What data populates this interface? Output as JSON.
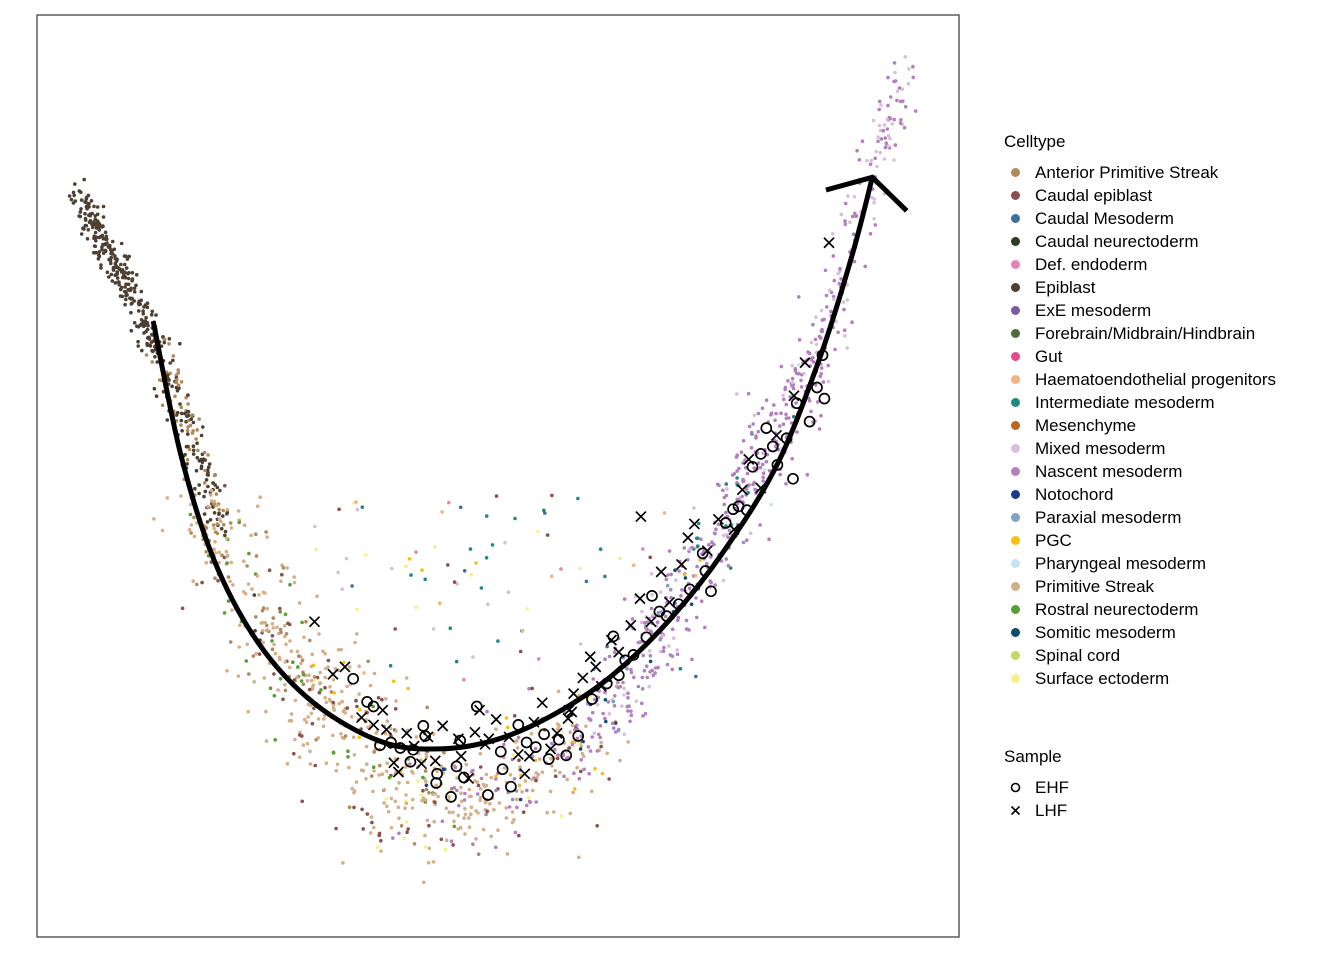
{
  "chart_data": {
    "type": "scatter",
    "title": "",
    "xlabel": "",
    "ylabel": "",
    "xlim": [
      0,
      100
    ],
    "ylim": [
      0,
      100
    ],
    "grid": false,
    "legend_placement": "right",
    "celltype_legend": {
      "title": "Celltype",
      "items": [
        {
          "label": "Anterior Primitive Streak",
          "color": "#b08a5a"
        },
        {
          "label": "Caudal epiblast",
          "color": "#8b4f4f"
        },
        {
          "label": "Caudal Mesoderm",
          "color": "#3a6fa0"
        },
        {
          "label": "Caudal neurectoderm",
          "color": "#2a3d1e"
        },
        {
          "label": "Def. endoderm",
          "color": "#e683b4"
        },
        {
          "label": "Epiblast",
          "color": "#4e3f32"
        },
        {
          "label": "ExE mesoderm",
          "color": "#7a5ca8"
        },
        {
          "label": "Forebrain/Midbrain/Hindbrain",
          "color": "#4f6b39"
        },
        {
          "label": "Gut",
          "color": "#e8488f"
        },
        {
          "label": "Haematoendothelial progenitors",
          "color": "#f4b183"
        },
        {
          "label": "Intermediate mesoderm",
          "color": "#1f8a84"
        },
        {
          "label": "Mesenchyme",
          "color": "#c0641a"
        },
        {
          "label": "Mixed mesoderm",
          "color": "#d9bfdc"
        },
        {
          "label": "Nascent mesoderm",
          "color": "#b27fbf"
        },
        {
          "label": "Notochord",
          "color": "#1b3a8c"
        },
        {
          "label": "Paraxial mesoderm",
          "color": "#7ba3c2"
        },
        {
          "label": "PGC",
          "color": "#f6c012"
        },
        {
          "label": "Pharyngeal mesoderm",
          "color": "#c7e2f5"
        },
        {
          "label": "Primitive Streak",
          "color": "#d4b089"
        },
        {
          "label": "Rostral neurectoderm",
          "color": "#56a033"
        },
        {
          "label": "Somitic mesoderm",
          "color": "#0f4d6e"
        },
        {
          "label": "Spinal cord",
          "color": "#c3d76a"
        },
        {
          "label": "Surface ectoderm",
          "color": "#f5f08a"
        }
      ]
    },
    "sample_legend": {
      "title": "Sample",
      "items": [
        {
          "label": "EHF",
          "shape": "open-circle"
        },
        {
          "label": "LHF",
          "shape": "cross"
        }
      ]
    },
    "trajectory": {
      "color": "#000000",
      "arrow_head": "end",
      "points": [
        [
          12.6,
          66.8
        ],
        [
          15.6,
          52.3
        ],
        [
          19.2,
          40.9
        ],
        [
          24.0,
          31.9
        ],
        [
          30.0,
          25.4
        ],
        [
          37.3,
          21.2
        ],
        [
          43.6,
          20.4
        ],
        [
          49.8,
          21.4
        ],
        [
          56.0,
          24.1
        ],
        [
          62.3,
          28.3
        ],
        [
          68.7,
          34.5
        ],
        [
          74.6,
          42.0
        ],
        [
          80.3,
          51.3
        ],
        [
          84.9,
          62.8
        ],
        [
          88.4,
          73.9
        ],
        [
          90.6,
          82.4
        ]
      ]
    },
    "ehf_cells": [
      [
        34.3,
        28.0
      ],
      [
        36.5,
        25.0
      ],
      [
        37.2,
        20.8
      ],
      [
        38.4,
        21.1
      ],
      [
        39.4,
        20.5
      ],
      [
        40.5,
        19.0
      ],
      [
        40.8,
        20.3
      ],
      [
        41.9,
        22.9
      ],
      [
        42.1,
        21.8
      ],
      [
        43.4,
        17.7
      ],
      [
        43.3,
        16.7
      ],
      [
        45.5,
        18.5
      ],
      [
        46.3,
        17.3
      ],
      [
        47.7,
        25.0
      ],
      [
        48.9,
        15.4
      ],
      [
        50.3,
        20.1
      ],
      [
        50.5,
        18.2
      ],
      [
        51.4,
        16.3
      ],
      [
        52.2,
        23.0
      ],
      [
        53.1,
        21.1
      ],
      [
        54.1,
        20.6
      ],
      [
        55.5,
        19.3
      ],
      [
        56.6,
        21.4
      ],
      [
        57.4,
        19.7
      ],
      [
        58.7,
        21.8
      ],
      [
        60.2,
        25.8
      ],
      [
        61.8,
        27.5
      ],
      [
        63.1,
        28.4
      ],
      [
        63.8,
        30.0
      ],
      [
        64.7,
        30.6
      ],
      [
        66.1,
        32.5
      ],
      [
        66.7,
        37.0
      ],
      [
        67.5,
        35.3
      ],
      [
        68.3,
        34.8
      ],
      [
        69.6,
        36.1
      ],
      [
        70.8,
        37.7
      ],
      [
        72.2,
        41.6
      ],
      [
        72.5,
        39.7
      ],
      [
        73.1,
        37.5
      ],
      [
        74.7,
        44.9
      ],
      [
        75.5,
        46.4
      ],
      [
        76.1,
        46.7
      ],
      [
        77.0,
        46.3
      ],
      [
        77.6,
        51.0
      ],
      [
        78.5,
        52.4
      ],
      [
        79.1,
        55.2
      ],
      [
        80.3,
        51.2
      ],
      [
        81.3,
        54.1
      ],
      [
        82.4,
        57.9
      ],
      [
        83.8,
        55.9
      ],
      [
        84.6,
        59.6
      ],
      [
        85.2,
        63.1
      ],
      [
        85.4,
        58.4
      ],
      [
        82.0,
        49.7
      ],
      [
        79.8,
        53.2
      ],
      [
        62.5,
        32.6
      ],
      [
        55.0,
        22.0
      ],
      [
        44.9,
        15.2
      ],
      [
        45.9,
        21.3
      ],
      [
        35.8,
        25.5
      ]
    ],
    "lhf_cells": [
      [
        30.1,
        34.2
      ],
      [
        32.1,
        28.5
      ],
      [
        33.4,
        29.3
      ],
      [
        35.2,
        23.8
      ],
      [
        36.5,
        23.0
      ],
      [
        37.9,
        22.5
      ],
      [
        38.7,
        18.9
      ],
      [
        40.1,
        22.1
      ],
      [
        40.9,
        20.7
      ],
      [
        41.7,
        18.8
      ],
      [
        43.2,
        19.1
      ],
      [
        44.0,
        22.9
      ],
      [
        45.7,
        21.5
      ],
      [
        46.8,
        17.2
      ],
      [
        47.5,
        22.2
      ],
      [
        48.6,
        20.9
      ],
      [
        49.0,
        21.5
      ],
      [
        49.8,
        23.6
      ],
      [
        51.2,
        21.7
      ],
      [
        52.2,
        19.8
      ],
      [
        53.4,
        19.6
      ],
      [
        54.8,
        25.4
      ],
      [
        55.7,
        20.4
      ],
      [
        56.4,
        22.1
      ],
      [
        57.6,
        23.7
      ],
      [
        58.0,
        24.4
      ],
      [
        58.2,
        26.4
      ],
      [
        59.2,
        28.1
      ],
      [
        60.6,
        29.3
      ],
      [
        61.2,
        27.2
      ],
      [
        62.3,
        32.2
      ],
      [
        63.1,
        30.9
      ],
      [
        64.4,
        33.8
      ],
      [
        65.4,
        36.7
      ],
      [
        66.6,
        34.2
      ],
      [
        67.7,
        39.6
      ],
      [
        68.6,
        36.3
      ],
      [
        69.9,
        40.4
      ],
      [
        70.6,
        43.3
      ],
      [
        71.3,
        44.8
      ],
      [
        72.7,
        41.9
      ],
      [
        73.9,
        45.3
      ],
      [
        75.6,
        44.2
      ],
      [
        76.5,
        48.5
      ],
      [
        77.2,
        51.8
      ],
      [
        78.5,
        48.7
      ],
      [
        80.2,
        54.4
      ],
      [
        82.1,
        58.7
      ],
      [
        83.3,
        62.3
      ],
      [
        85.9,
        75.3
      ],
      [
        65.5,
        45.6
      ],
      [
        57.7,
        24.6
      ],
      [
        42.4,
        21.7
      ],
      [
        39.2,
        17.9
      ],
      [
        37.5,
        24.6
      ],
      [
        46.0,
        19.6
      ],
      [
        52.9,
        17.7
      ],
      [
        60.0,
        30.4
      ],
      [
        53.9,
        23.3
      ],
      [
        48.0,
        24.6
      ]
    ]
  }
}
